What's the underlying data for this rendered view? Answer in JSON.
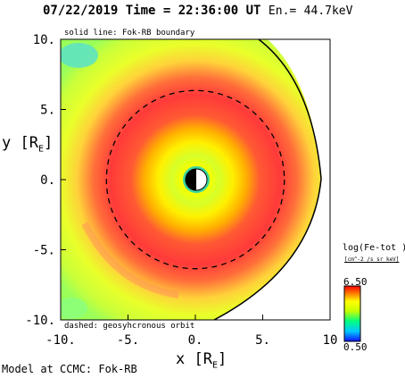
{
  "header": {
    "date": "07/22/2019",
    "time_label": "Time =",
    "time_value": "22:36:00",
    "time_unit": "UT",
    "energy_label": "En.=",
    "energy_value": "44.7keV"
  },
  "annotations": {
    "solid_line": "solid line: Fok-RB boundary",
    "dashed_line": "dashed: geosyhcronous orbit"
  },
  "footer": "Model at CCMC: Fok-RB",
  "colorbar": {
    "title": "log(Fe-tot )",
    "units": "[cm^-2 /s sr keV]",
    "max_label": "6.50",
    "min_label": "0.50",
    "max": 6.5,
    "min": 0.5
  },
  "chart_data": {
    "type": "heatmap",
    "title": "07/22/2019 Time = 22:36:00 UT En.= 44.7keV",
    "xlabel": "x [R_E]",
    "ylabel": "y [R_E]",
    "xlim": [
      -10,
      10
    ],
    "ylim": [
      -10,
      10
    ],
    "x_ticks": [
      "-10.",
      "-5.",
      "0.",
      "5.",
      "10"
    ],
    "y_ticks": [
      "10.",
      "5.",
      "0.",
      "-5.",
      "-10."
    ],
    "colorbar_range": [
      0.5,
      6.5
    ],
    "colorbar_label": "log(Fe-tot )",
    "geosynchronous_orbit_radius": 6.6,
    "boundary_max_x": 9.6,
    "grid": false
  }
}
